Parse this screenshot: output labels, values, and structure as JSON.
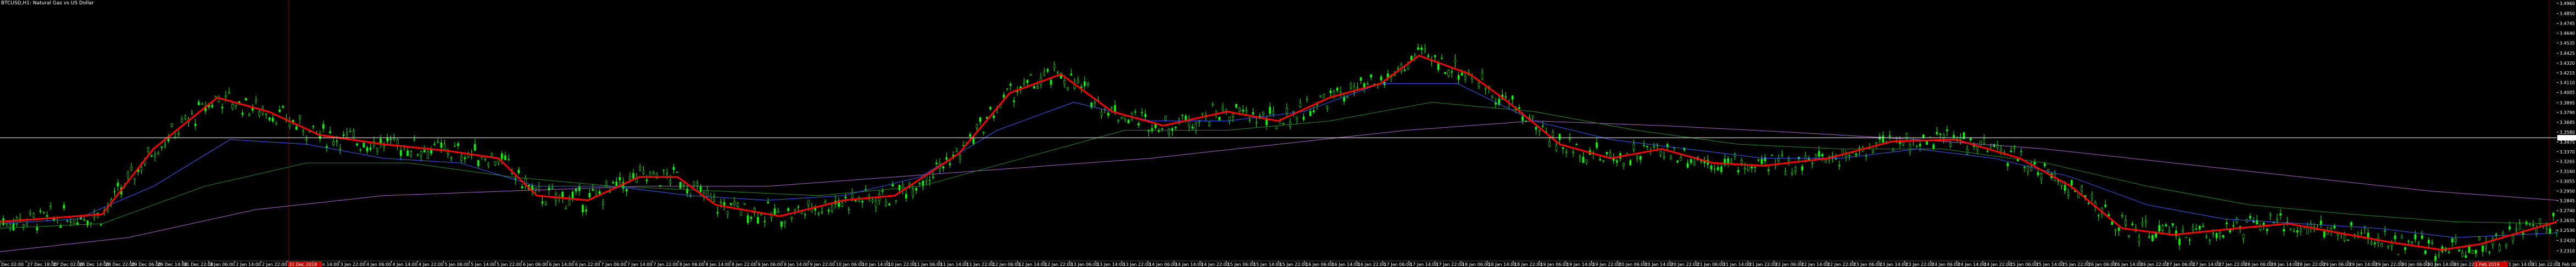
{
  "window": {
    "title": "BTCUSD,H1: Natural Gas vs US Dollar"
  },
  "colors": {
    "background": "#000000",
    "candle": "#00ff00",
    "ma_fast": "#ff0000",
    "ma_blue": "#3a5cff",
    "ma_green": "#1f8f1f",
    "ma_purple": "#b060d0",
    "price_line": "#ffffff",
    "period_separator": "#cc0000",
    "date_highlight_bg": "#cc0000",
    "text": "#ffffff"
  },
  "chart_data": {
    "type": "candlestick",
    "symbol": "BTCUSD",
    "timeframe": "H1",
    "ylim": [
      3.22,
      3.496
    ],
    "price_ticks": [
      "3.4960",
      "3.4850",
      "3.4745",
      "3.4640",
      "3.4535",
      "3.4425",
      "3.4320",
      "3.4215",
      "3.4110",
      "3.4005",
      "3.3895",
      "3.3790",
      "3.3685",
      "3.3580",
      "3.3475",
      "3.3370",
      "3.3265",
      "3.3160",
      "3.3055",
      "3.2950",
      "3.2845",
      "3.2740",
      "3.2635",
      "3.2530",
      "3.2420",
      "3.2310"
    ],
    "current_price": "3.3520",
    "date_labels": [
      "Dec 02:00",
      "27 Dec 18:00",
      "27 Dec 02:00",
      "28 Dec 14:00",
      "28 Dec 22:00",
      "29 Dec 06:00",
      "29 Dec 14:00",
      "31 Dec 22:00",
      "3 Jan 06:00",
      "2 Jan 14:00",
      "2 Jan 22:00",
      "3 Jan 06:00",
      "3 Jan 14:00",
      "3 Jan 22:00",
      "4 Jan 06:00",
      "4 Jan 14:00",
      "4 Jan 22:00",
      "5 Jan 06:00",
      "5 Jan 14:00",
      "5 Jan 22:00",
      "6 Jan 06:00",
      "6 Jan 14:00",
      "6 Jan 22:00",
      "7 Jan 06:00",
      "7 Jan 14:00",
      "7 Jan 22:00",
      "8 Jan 06:00",
      "8 Jan 14:00",
      "8 Jan 22:00",
      "9 Jan 06:00",
      "9 Jan 14:00",
      "9 Jan 22:00",
      "10 Jan 06:00",
      "10 Jan 14:00",
      "10 Jan 22:00",
      "11 Jan 06:00",
      "11 Jan 14:00",
      "11 Jan 22:00",
      "12 Jan 06:00",
      "12 Jan 14:00",
      "12 Jan 22:00",
      "13 Jan 06:00",
      "13 Jan 14:00",
      "13 Jan 22:00",
      "14 Jan 06:00",
      "14 Jan 14:00",
      "14 Jan 22:00",
      "15 Jan 06:00",
      "15 Jan 14:00",
      "15 Jan 22:00",
      "16 Jan 06:00",
      "16 Jan 14:00",
      "16 Jan 22:00",
      "17 Jan 06:00",
      "17 Jan 14:00",
      "17 Jan 22:00",
      "18 Jan 06:00",
      "18 Jan 14:00",
      "18 Jan 22:00",
      "19 Jan 06:00",
      "19 Jan 14:00",
      "19 Jan 22:00",
      "20 Jan 06:00",
      "20 Jan 14:00",
      "20 Jan 22:00",
      "21 Jan 06:00",
      "21 Jan 14:00",
      "21 Jan 22:00",
      "22 Jan 06:00",
      "22 Jan 14:00",
      "22 Jan 22:00",
      "23 Jan 06:00",
      "23 Jan 14:00",
      "23 Jan 22:00",
      "24 Jan 06:00",
      "24 Jan 14:00",
      "24 Jan 22:00",
      "25 Jan 06:00",
      "25 Jan 14:00",
      "25 Jan 22:00",
      "26 Jan 06:00",
      "26 Jan 14:00",
      "26 Jan 22:00",
      "27 Jan 06:00",
      "27 Jan 14:00",
      "27 Jan 22:00",
      "28 Jan 06:00",
      "28 Jan 14:00",
      "28 Jan 22:00",
      "29 Jan 06:00",
      "29 Jan 14:00",
      "29 Jan 22:00",
      "30 Jan 06:00",
      "30 Jan 14:00",
      "30 Jan 22:00",
      "31 Jan 06:00",
      "31 Jan 14:00",
      "31 Jan 22:00",
      "1 Feb 06:00"
    ],
    "highlighted_dates": [
      "31 Dec 2018",
      "1 Feb 2019"
    ],
    "ma_fast_points": [
      [
        0,
        3.262
      ],
      [
        0.02,
        3.266
      ],
      [
        0.04,
        3.27
      ],
      [
        0.06,
        3.34
      ],
      [
        0.085,
        3.395
      ],
      [
        0.105,
        3.38
      ],
      [
        0.125,
        3.355
      ],
      [
        0.15,
        3.345
      ],
      [
        0.175,
        3.338
      ],
      [
        0.195,
        3.33
      ],
      [
        0.21,
        3.29
      ],
      [
        0.23,
        3.285
      ],
      [
        0.25,
        3.31
      ],
      [
        0.265,
        3.31
      ],
      [
        0.28,
        3.28
      ],
      [
        0.305,
        3.268
      ],
      [
        0.33,
        3.285
      ],
      [
        0.35,
        3.29
      ],
      [
        0.375,
        3.335
      ],
      [
        0.395,
        3.4
      ],
      [
        0.415,
        3.42
      ],
      [
        0.435,
        3.38
      ],
      [
        0.455,
        3.365
      ],
      [
        0.48,
        3.38
      ],
      [
        0.5,
        3.37
      ],
      [
        0.52,
        3.395
      ],
      [
        0.54,
        3.41
      ],
      [
        0.555,
        3.44
      ],
      [
        0.575,
        3.42
      ],
      [
        0.59,
        3.39
      ],
      [
        0.61,
        3.345
      ],
      [
        0.63,
        3.33
      ],
      [
        0.65,
        3.34
      ],
      [
        0.67,
        3.325
      ],
      [
        0.69,
        3.322
      ],
      [
        0.715,
        3.33
      ],
      [
        0.74,
        3.348
      ],
      [
        0.765,
        3.35
      ],
      [
        0.79,
        3.33
      ],
      [
        0.81,
        3.3
      ],
      [
        0.83,
        3.255
      ],
      [
        0.85,
        3.248
      ],
      [
        0.875,
        3.255
      ],
      [
        0.895,
        3.26
      ],
      [
        0.915,
        3.25
      ],
      [
        0.935,
        3.24
      ],
      [
        0.955,
        3.232
      ],
      [
        0.97,
        3.238
      ],
      [
        0.985,
        3.25
      ],
      [
        1.0,
        3.262
      ]
    ],
    "ma_blue_points": [
      [
        0,
        3.26
      ],
      [
        0.03,
        3.265
      ],
      [
        0.06,
        3.3
      ],
      [
        0.09,
        3.35
      ],
      [
        0.12,
        3.345
      ],
      [
        0.15,
        3.33
      ],
      [
        0.18,
        3.325
      ],
      [
        0.21,
        3.3
      ],
      [
        0.24,
        3.3
      ],
      [
        0.27,
        3.29
      ],
      [
        0.3,
        3.285
      ],
      [
        0.33,
        3.29
      ],
      [
        0.36,
        3.31
      ],
      [
        0.39,
        3.36
      ],
      [
        0.42,
        3.39
      ],
      [
        0.45,
        3.37
      ],
      [
        0.48,
        3.37
      ],
      [
        0.51,
        3.38
      ],
      [
        0.54,
        3.41
      ],
      [
        0.57,
        3.41
      ],
      [
        0.6,
        3.37
      ],
      [
        0.63,
        3.35
      ],
      [
        0.66,
        3.34
      ],
      [
        0.69,
        3.33
      ],
      [
        0.72,
        3.33
      ],
      [
        0.75,
        3.34
      ],
      [
        0.78,
        3.33
      ],
      [
        0.81,
        3.31
      ],
      [
        0.84,
        3.28
      ],
      [
        0.87,
        3.265
      ],
      [
        0.9,
        3.26
      ],
      [
        0.93,
        3.255
      ],
      [
        0.96,
        3.245
      ],
      [
        1.0,
        3.25
      ]
    ],
    "ma_green_points": [
      [
        0,
        3.255
      ],
      [
        0.04,
        3.26
      ],
      [
        0.08,
        3.3
      ],
      [
        0.12,
        3.325
      ],
      [
        0.16,
        3.325
      ],
      [
        0.2,
        3.31
      ],
      [
        0.24,
        3.3
      ],
      [
        0.28,
        3.295
      ],
      [
        0.32,
        3.29
      ],
      [
        0.36,
        3.3
      ],
      [
        0.4,
        3.33
      ],
      [
        0.44,
        3.36
      ],
      [
        0.48,
        3.36
      ],
      [
        0.52,
        3.37
      ],
      [
        0.56,
        3.39
      ],
      [
        0.6,
        3.38
      ],
      [
        0.64,
        3.36
      ],
      [
        0.68,
        3.345
      ],
      [
        0.72,
        3.34
      ],
      [
        0.76,
        3.34
      ],
      [
        0.8,
        3.325
      ],
      [
        0.84,
        3.3
      ],
      [
        0.88,
        3.28
      ],
      [
        0.92,
        3.27
      ],
      [
        0.96,
        3.262
      ],
      [
        1.0,
        3.26
      ]
    ],
    "ma_purple_points": [
      [
        0,
        3.23
      ],
      [
        0.05,
        3.245
      ],
      [
        0.1,
        3.275
      ],
      [
        0.15,
        3.29
      ],
      [
        0.2,
        3.295
      ],
      [
        0.25,
        3.3
      ],
      [
        0.3,
        3.3
      ],
      [
        0.35,
        3.31
      ],
      [
        0.4,
        3.32
      ],
      [
        0.45,
        3.33
      ],
      [
        0.5,
        3.345
      ],
      [
        0.55,
        3.36
      ],
      [
        0.6,
        3.37
      ],
      [
        0.65,
        3.365
      ],
      [
        0.7,
        3.358
      ],
      [
        0.75,
        3.35
      ],
      [
        0.8,
        3.34
      ],
      [
        0.85,
        3.325
      ],
      [
        0.9,
        3.31
      ],
      [
        0.95,
        3.295
      ],
      [
        1.0,
        3.285
      ]
    ]
  }
}
